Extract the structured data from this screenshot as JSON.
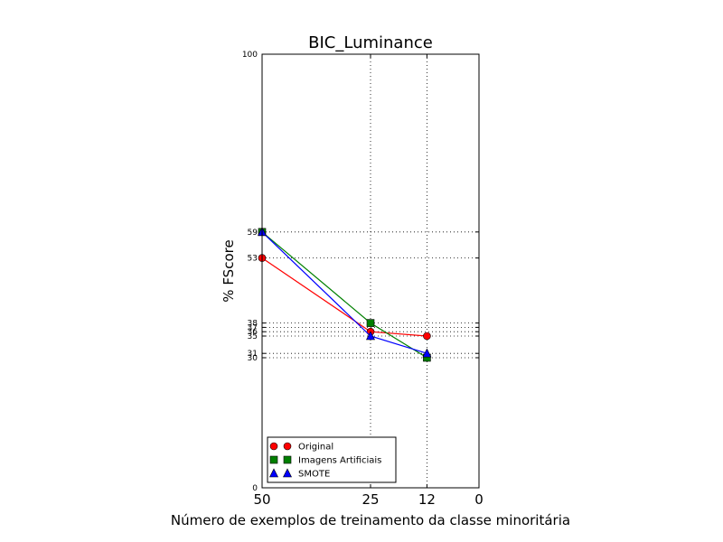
{
  "chart_data": {
    "type": "line",
    "title": "BIC_Luminance",
    "xlabel": "Número de exemplos de treinamento da classe minoritária",
    "ylabel": "% FScore",
    "xlim": [
      50,
      0
    ],
    "ylim": [
      0,
      100
    ],
    "x": [
      50,
      25,
      12
    ],
    "x_ticks": [
      "50",
      "25",
      "12",
      "0"
    ],
    "y_ticks": [
      "0",
      "30",
      "31",
      "35",
      "36",
      "37",
      "38",
      "53",
      "59",
      "100"
    ],
    "grid": "dotted, at data x and y tick values",
    "legend_position": "lower-left",
    "series": [
      {
        "name": "Original",
        "marker": "circle",
        "color": "#ff0000",
        "values": [
          53,
          36,
          35
        ]
      },
      {
        "name": "Imagens Artificiais",
        "marker": "square",
        "color": "#008000",
        "values": [
          59,
          38,
          30
        ]
      },
      {
        "name": "SMOTE",
        "marker": "triangle",
        "color": "#0000ff",
        "values": [
          59,
          35,
          31
        ]
      }
    ]
  }
}
